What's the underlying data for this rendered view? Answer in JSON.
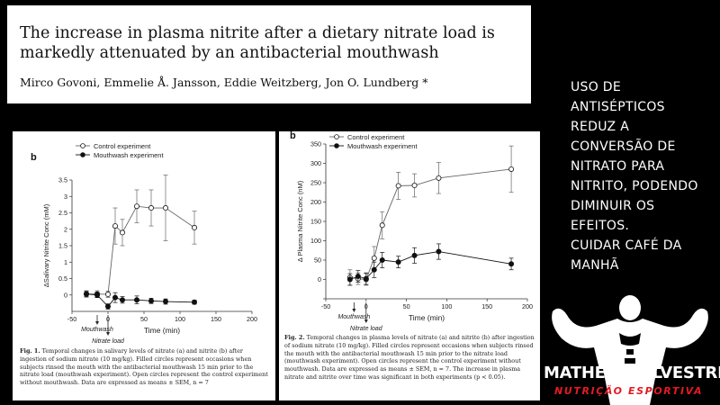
{
  "paper": {
    "title": "The increase in plasma nitrite after a dietary nitrate load is markedly attenuated by an antibacterial mouthwash",
    "authors": "Mirco Govoni, Emmelie Å. Jansson, Eddie Weitzberg, Jon O. Lundberg *"
  },
  "figures": [
    {
      "caption_label": "Fig. 1.",
      "caption_text": "Temporal changes in salivary levels of nitrate (a) and nitrite (b) after ingestion of sodium nitrate (10 mg/kg). Filled circles represent occasions when subjects rinsed the mouth with the antibacterial mouthwash 15 min prior to the nitrate load (mouthwash experiment). Open circles represent the control experiment without mouthwash. Data are expressed as means ± SEM, n = 7"
    },
    {
      "caption_label": "Fig. 2.",
      "caption_text": "Temporal changes in plasma levels of nitrate (a) and nitrite (b) after ingestion of sodium nitrate (10 mg/kg). Filled circles represent occasions when subjects rinsed the mouth with the antibacterial mouthwash 15 min prior to the nitrate load (mouthwash experiment). Open circles represent the control experiment without mouthwash. Data are expressed as means ± SEM, n = 7. The increase in plasma nitrate and nitrite over time was significant in both experiments (p < 0.05)."
    }
  ],
  "chart_data": [
    {
      "type": "line",
      "panel_label": "b",
      "ylabel": "ΔSalivary Nitrite Conc (mM)",
      "xlabel": "Time (min)",
      "xlim": [
        -50,
        200
      ],
      "ylim": [
        -0.5,
        3.5
      ],
      "xticks": [
        -50,
        0,
        50,
        100,
        150,
        200
      ],
      "yticks": [
        0,
        0.5,
        1,
        1.5,
        2,
        2.5,
        3,
        3.5
      ],
      "ytick_labels": [
        "0",
        "0.5",
        "1",
        "1.5",
        "2",
        "2.5",
        "3",
        "3.5"
      ],
      "annotations": {
        "mouthwash": "Mouthwash",
        "nitrate_load": "Nitrate load"
      },
      "series": [
        {
          "name": "Control experiment",
          "marker": "open",
          "points": [
            [
              -30,
              0.03
            ],
            [
              -15,
              0.03
            ],
            [
              0,
              0.02
            ],
            [
              10,
              2.1
            ],
            [
              20,
              1.9
            ],
            [
              40,
              2.7
            ],
            [
              60,
              2.65
            ],
            [
              80,
              2.65
            ],
            [
              120,
              2.05
            ]
          ],
          "err": [
            0.1,
            0.1,
            0.1,
            0.55,
            0.4,
            0.5,
            0.55,
            1.0,
            0.5
          ]
        },
        {
          "name": "Mouthwash experiment",
          "marker": "filled",
          "points": [
            [
              -30,
              0.03
            ],
            [
              -15,
              0.0
            ],
            [
              0,
              -0.35
            ],
            [
              10,
              -0.08
            ],
            [
              20,
              -0.15
            ],
            [
              40,
              -0.15
            ],
            [
              60,
              -0.18
            ],
            [
              80,
              -0.2
            ],
            [
              120,
              -0.22
            ]
          ],
          "err": [
            0.08,
            0.08,
            0.08,
            0.15,
            0.1,
            0.12,
            0.08,
            0.08,
            0.06
          ]
        }
      ]
    },
    {
      "type": "line",
      "panel_label": "b",
      "ylabel": "Δ Plasma Nitrite Conc (nM)",
      "xlabel": "Time (min)",
      "xlim": [
        -50,
        200
      ],
      "ylim": [
        -50,
        350
      ],
      "xticks": [
        -50,
        0,
        50,
        100,
        150,
        200
      ],
      "yticks": [
        -50,
        0,
        50,
        100,
        150,
        200,
        250,
        300,
        350
      ],
      "ytick_labels": [
        "",
        "0",
        "50",
        "100",
        "150",
        "200",
        "250",
        "300",
        "350"
      ],
      "annotations": {
        "mouthwash": "Mouthwash",
        "nitrate_load": "Nitrate load"
      },
      "series": [
        {
          "name": "Control experiment",
          "marker": "open",
          "points": [
            [
              -20,
              5
            ],
            [
              -10,
              2
            ],
            [
              0,
              0
            ],
            [
              10,
              55
            ],
            [
              20,
              140
            ],
            [
              40,
              242
            ],
            [
              60,
              243
            ],
            [
              90,
              262
            ],
            [
              180,
              285
            ]
          ],
          "err": [
            20,
            15,
            15,
            30,
            35,
            35,
            30,
            40,
            60
          ]
        },
        {
          "name": "Mouthwash experiment",
          "marker": "filled",
          "points": [
            [
              -20,
              0
            ],
            [
              -10,
              8
            ],
            [
              0,
              2
            ],
            [
              10,
              25
            ],
            [
              20,
              50
            ],
            [
              40,
              45
            ],
            [
              60,
              62
            ],
            [
              90,
              72
            ],
            [
              180,
              40
            ]
          ],
          "err": [
            15,
            15,
            15,
            20,
            20,
            15,
            20,
            20,
            15
          ]
        }
      ]
    }
  ],
  "side_text": [
    "USO DE",
    "ANTISÉPTICOS",
    "REDUZ A",
    "CONVERSÃO DE",
    "NITRATO PARA",
    "NITRITO, PODENDO",
    "DIMINUIR OS",
    "EFEITOS.",
    "CUIDAR CAFÉ DA",
    "MANHÃ"
  ],
  "brand": {
    "name": "MATHEUS SILVESTRE",
    "tagline": "NUTRIÇÃO ESPORTIVA"
  }
}
